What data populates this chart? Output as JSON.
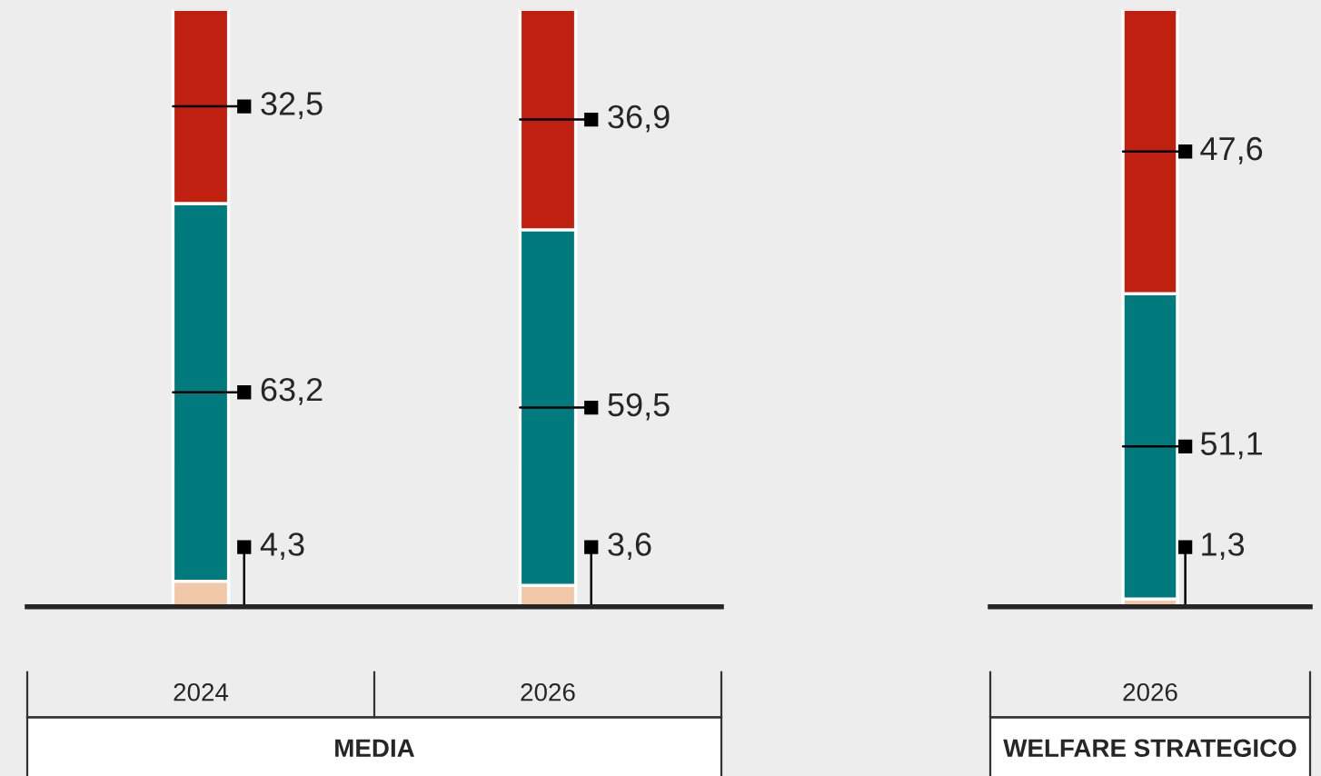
{
  "chart_data": [
    {
      "type": "bar",
      "stacked": true,
      "categories": [
        "2024",
        "2026"
      ],
      "xlabel": "MEDIA",
      "series": [
        {
          "color": "#f2c9a8",
          "values": [
            4.3,
            3.6
          ],
          "value_labels": [
            "4,3",
            "3,6"
          ]
        },
        {
          "color": "#007a7c",
          "values": [
            63.2,
            59.5
          ],
          "value_labels": [
            "63,2",
            "59,5"
          ]
        },
        {
          "color": "#c0200f",
          "values": [
            32.5,
            36.9
          ],
          "value_labels": [
            "32,5",
            "36,9"
          ]
        }
      ]
    },
    {
      "type": "bar",
      "stacked": true,
      "categories": [
        "2026"
      ],
      "xlabel": "WELFARE STRATEGICO",
      "series": [
        {
          "color": "#f2c9a8",
          "values": [
            1.3
          ],
          "value_labels": [
            "1,3"
          ]
        },
        {
          "color": "#007a7c",
          "values": [
            51.1
          ],
          "value_labels": [
            "51,1"
          ]
        },
        {
          "color": "#c0200f",
          "values": [
            47.6
          ],
          "value_labels": [
            "47,6"
          ]
        }
      ]
    }
  ]
}
